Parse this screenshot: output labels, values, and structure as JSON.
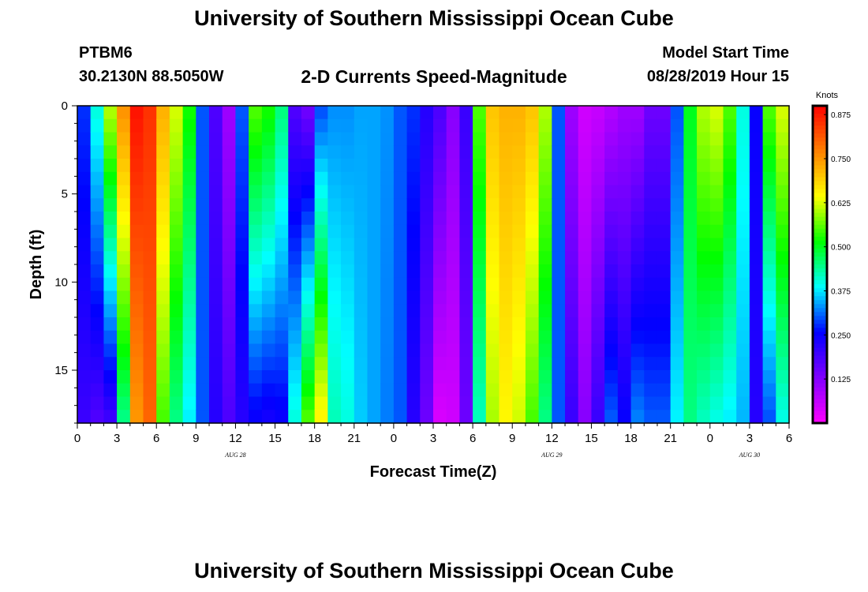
{
  "header": {
    "title": "University of Southern Mississippi Ocean Cube",
    "station": "PTBM6",
    "coords": "30.2130N 88.5050W",
    "subtitle": "2-D Currents Speed-Magnitude",
    "model_start_label": "Model Start Time",
    "model_start_value": "08/28/2019 Hour 15"
  },
  "footer": {
    "title": "University of Southern Mississippi Ocean Cube"
  },
  "chart_data": {
    "type": "heatmap",
    "xlabel": "Forecast Time(Z)",
    "ylabel": "Depth (ft)",
    "x_hours_range": [
      0,
      54
    ],
    "y_range": [
      0,
      18
    ],
    "y_ticks": [
      0,
      5,
      10,
      15
    ],
    "x_tick_labels": [
      "0",
      "3",
      "6",
      "9",
      "12",
      "15",
      "18",
      "21",
      "0",
      "3",
      "6",
      "9",
      "12",
      "15",
      "18",
      "21",
      "0",
      "3",
      "6"
    ],
    "date_labels": [
      {
        "label": "AUG 28",
        "hour": 12
      },
      {
        "label": "AUG 29",
        "hour": 36
      },
      {
        "label": "AUG 30",
        "hour": 51
      }
    ],
    "colorbar": {
      "unit": "Knots",
      "range": [
        0,
        0.9
      ],
      "ticks": [
        "0.875",
        "0.750",
        "0.625",
        "0.500",
        "0.375",
        "0.250",
        "0.125"
      ],
      "tick_values": [
        0.875,
        0.75,
        0.625,
        0.5,
        0.375,
        0.25,
        0.125
      ],
      "colors": [
        "#ff00ff",
        "#8000ff",
        "#0000ff",
        "#00ffff",
        "#00ff00",
        "#ffff00",
        "#ff8000",
        "#ff0000"
      ]
    },
    "profiles": [
      [
        0.28,
        0.2
      ],
      [
        0.4,
        0.18
      ],
      [
        0.6,
        0.2
      ],
      [
        0.75,
        0.45
      ],
      [
        0.88,
        0.75
      ],
      [
        0.85,
        0.8
      ],
      [
        0.72,
        0.55
      ],
      [
        0.62,
        0.45
      ],
      [
        0.52,
        0.38
      ],
      [
        0.3,
        0.3
      ],
      [
        0.18,
        0.22
      ],
      [
        0.1,
        0.18
      ],
      [
        0.3,
        0.22
      ],
      [
        0.55,
        0.25
      ],
      [
        0.52,
        0.24
      ],
      [
        0.45,
        0.25
      ],
      [
        0.18,
        0.4
      ],
      [
        0.15,
        0.55
      ],
      [
        0.3,
        0.65
      ],
      [
        0.33,
        0.42
      ],
      [
        0.33,
        0.4
      ],
      [
        0.34,
        0.36
      ],
      [
        0.34,
        0.34
      ],
      [
        0.33,
        0.32
      ],
      [
        0.3,
        0.3
      ],
      [
        0.28,
        0.22
      ],
      [
        0.22,
        0.15
      ],
      [
        0.18,
        0.04
      ],
      [
        0.12,
        0.05
      ],
      [
        0.2,
        0.15
      ],
      [
        0.55,
        0.42
      ],
      [
        0.7,
        0.6
      ],
      [
        0.72,
        0.65
      ],
      [
        0.72,
        0.62
      ],
      [
        0.7,
        0.55
      ],
      [
        0.6,
        0.45
      ],
      [
        0.3,
        0.3
      ],
      [
        0.1,
        0.2
      ],
      [
        0.05,
        0.12
      ],
      [
        0.06,
        0.2
      ],
      [
        0.08,
        0.3
      ],
      [
        0.1,
        0.25
      ],
      [
        0.1,
        0.32
      ],
      [
        0.15,
        0.3
      ],
      [
        0.15,
        0.3
      ],
      [
        0.3,
        0.38
      ],
      [
        0.5,
        0.45
      ],
      [
        0.6,
        0.42
      ],
      [
        0.62,
        0.4
      ],
      [
        0.55,
        0.38
      ],
      [
        0.4,
        0.35
      ],
      [
        0.25,
        0.22
      ],
      [
        0.55,
        0.3
      ],
      [
        0.62,
        0.4
      ]
    ]
  }
}
